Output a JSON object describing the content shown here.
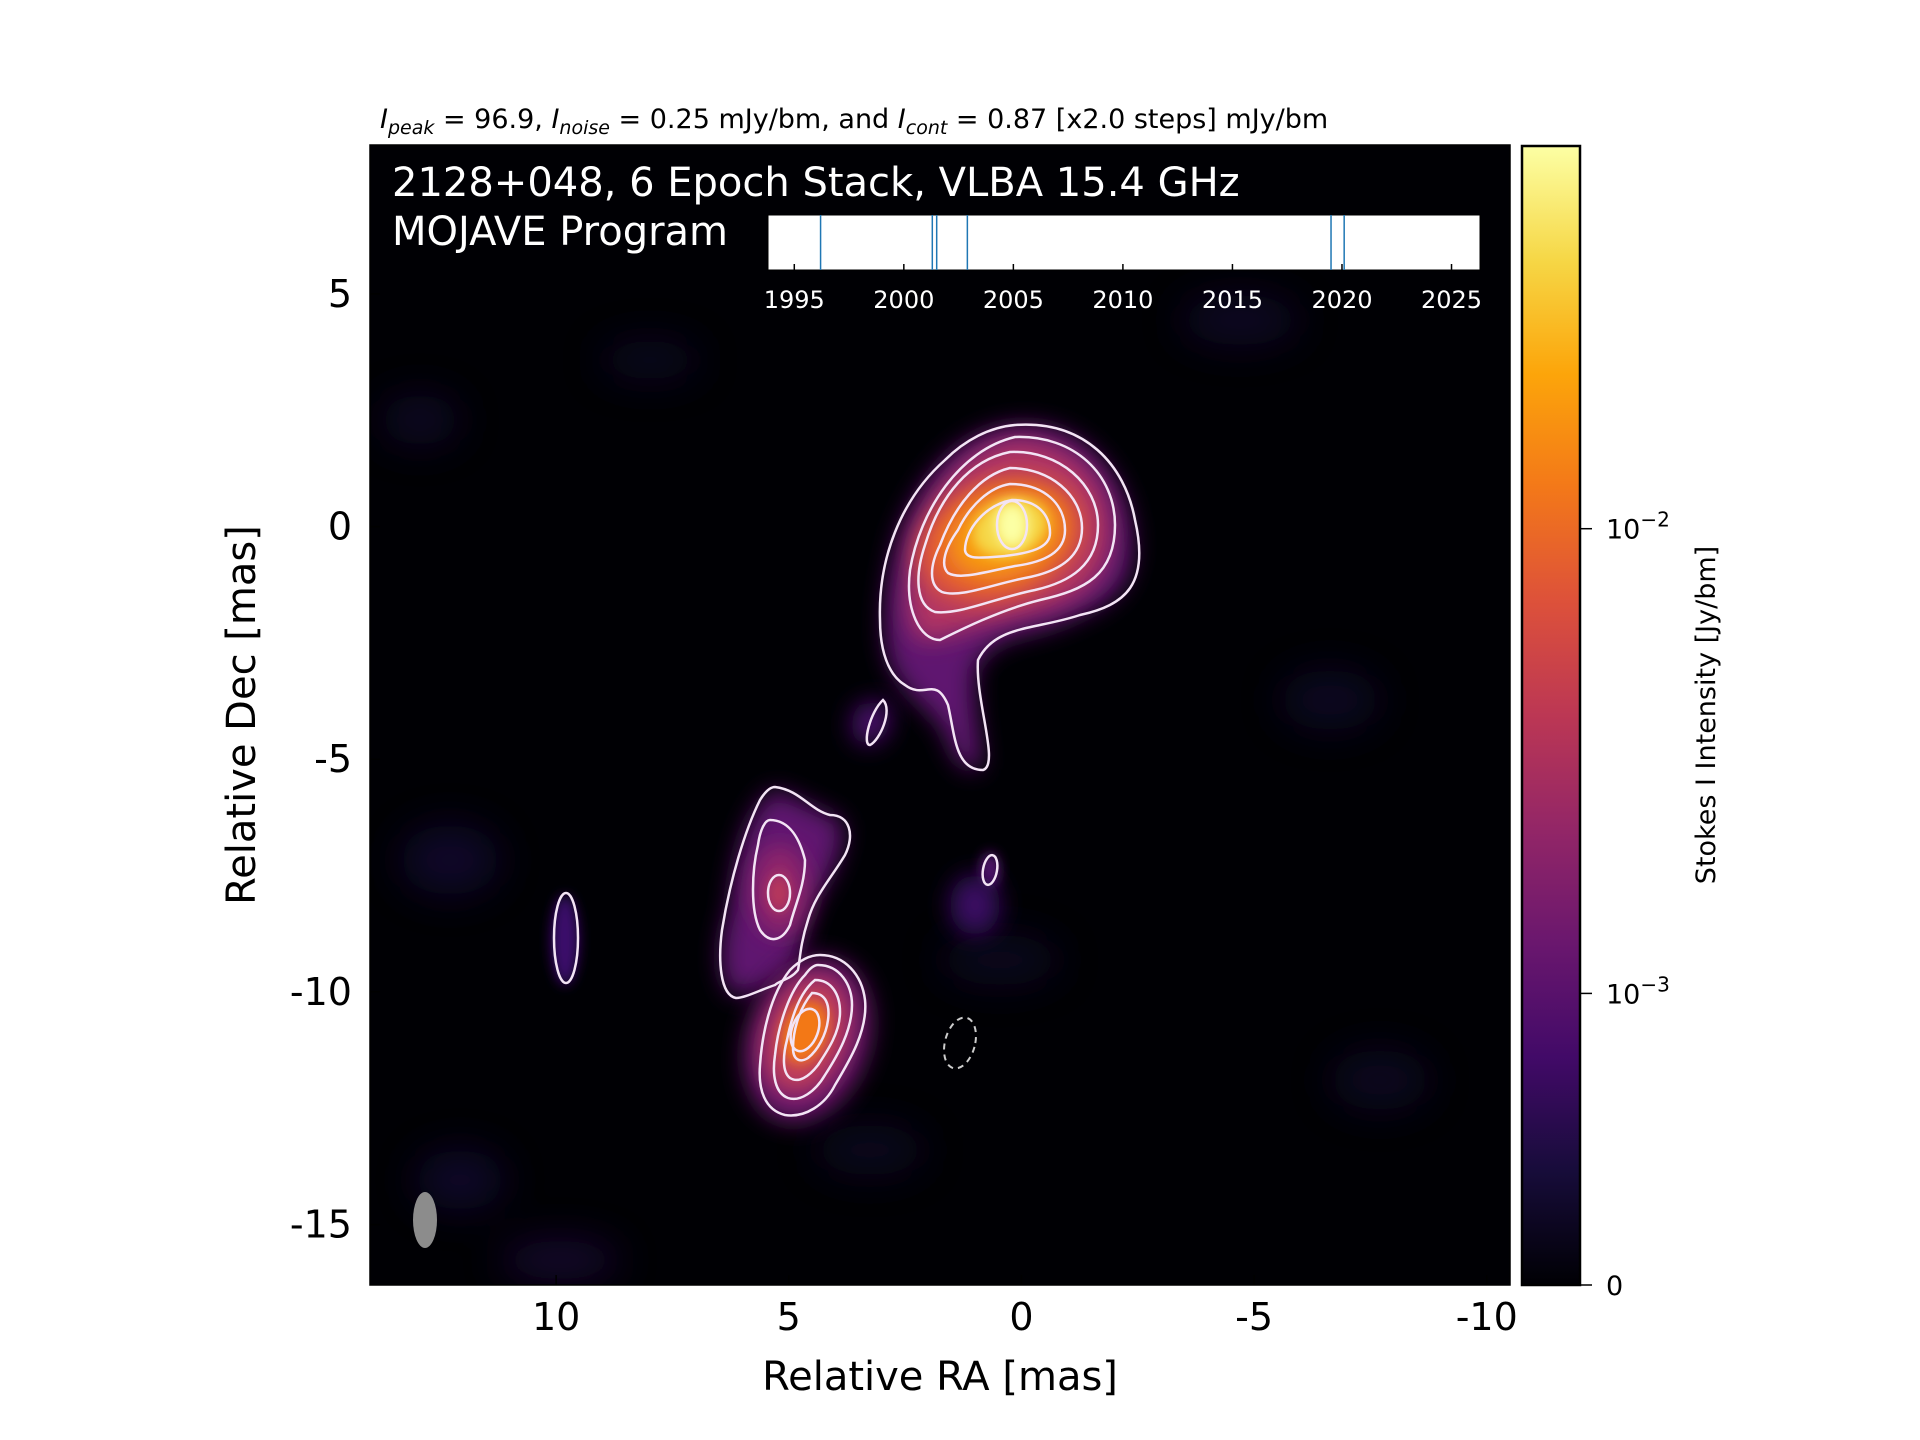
{
  "chart_data": {
    "type": "heatmap",
    "header": {
      "peak_symbol": "I",
      "peak_sub": "peak",
      "peak_text": " = 96.9, ",
      "noise_symbol": "I",
      "noise_sub": "noise",
      "noise_text": " = 0.25 mJy/bm, and ",
      "cont_symbol": "I",
      "cont_sub": "cont",
      "cont_text": " = 0.87 [x2.0 steps] mJy/bm"
    },
    "annotation_line1": "2128+048, 6 Epoch Stack, VLBA 15.4 GHz",
    "annotation_line2": "MOJAVE Program",
    "xlabel": "Relative RA [mas]",
    "ylabel": "Relative Dec [mas]",
    "xlim": [
      14,
      -10.5
    ],
    "ylim": [
      -16.3,
      8.2
    ],
    "x_ticks": [
      {
        "value": 10,
        "label": "10"
      },
      {
        "value": 5,
        "label": "5"
      },
      {
        "value": 0,
        "label": "0"
      },
      {
        "value": -5,
        "label": "-5"
      },
      {
        "value": -10,
        "label": "-10"
      }
    ],
    "y_ticks": [
      {
        "value": 5,
        "label": "5"
      },
      {
        "value": 0,
        "label": "0"
      },
      {
        "value": -5,
        "label": "-5"
      },
      {
        "value": -10,
        "label": "-10"
      },
      {
        "value": -15,
        "label": "-15"
      }
    ],
    "colorbar": {
      "label": "Stokes I Intensity [Jy/bm]",
      "scale": "log",
      "colormap": "inferno",
      "ticks": [
        {
          "fraction": 0.0,
          "base": "0",
          "exp": ""
        },
        {
          "fraction": 0.256,
          "base": "10",
          "exp": "−3"
        },
        {
          "fraction": 0.664,
          "base": "10",
          "exp": "−2"
        }
      ]
    },
    "epoch_timeline": {
      "xlim": [
        1993.8,
        2026.3
      ],
      "ticks": [
        "1995",
        "2000",
        "2005",
        "2010",
        "2015",
        "2020",
        "2025"
      ],
      "epochs": [
        1996.2,
        2001.3,
        2001.5,
        2002.9,
        2019.5,
        2020.1
      ]
    },
    "components": [
      {
        "ra": 0.1,
        "dec": 0.0,
        "peak_mJy": 96.9
      },
      {
        "ra": 4.5,
        "dec": -10.9,
        "peak_mJy": 28
      },
      {
        "ra": 5.0,
        "dec": -7.9,
        "peak_mJy": 9
      }
    ],
    "colors": {
      "contour": "#f3e4f5",
      "beam": "#8c8c8c",
      "epoch_line": "#1f77b4",
      "background": "#000004"
    }
  }
}
